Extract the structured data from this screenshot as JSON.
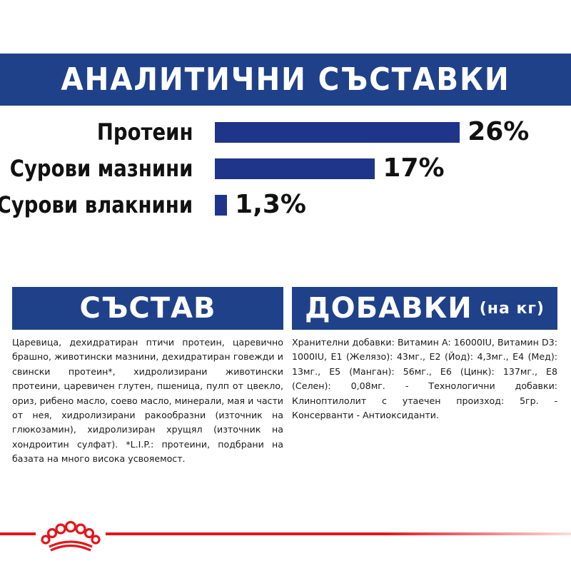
{
  "banner": {
    "title": "АНАЛИТИЧНИ СЪСТАВКИ"
  },
  "analytics": {
    "rows": [
      {
        "label": "Протеин",
        "value_text": "26%",
        "value": 26
      },
      {
        "label": "Сурови мазнини",
        "value_text": "17%",
        "value": 17
      },
      {
        "label": "Сурови влакнини",
        "value_text": "1,3%",
        "value": 1.3
      }
    ]
  },
  "composition": {
    "title": "СЪСТАВ",
    "text": "Царевица, дехидратиран птичи протеин, царевично брашно, животински мазнини, дехидратиран говежди и свински протеин*, хидролизирани животински протеини, царевичен глутен, пшеница, пулп от цвекло, ориз, рибено масло, соево масло, минерали, мая и части от нея, хидролизирани ракообразни (източник на глюкозамин), хидролизиран хрущял (източник на хондроитин сулфат). *L.I.P.: протеини, подбрани на базата на много висока усвояемост."
  },
  "additives": {
    "title": "ДОБАВКИ",
    "title_suffix": "(на кг)",
    "text": "Хранителни добавки: Витамин A: 16000IU, Витамин D3: 1000IU, E1 (Желязо): 43мг., E2 (Йод): 4,3мг., E4 (Мед): 13мг., E5 (Манган): 56мг., E6 (Цинк): 137мг., E8 (Селен): 0,08мг. - Технологични добавки: Клиноптилолит с утаечен произход: 5гр. - Консерванти - Антиоксиданти."
  },
  "colors": {
    "brand_blue": "#1f4189",
    "bar_blue": "#1f358a",
    "brand_red": "#e3161b"
  },
  "logo": {
    "icon": "royal-canin-crown-icon"
  }
}
